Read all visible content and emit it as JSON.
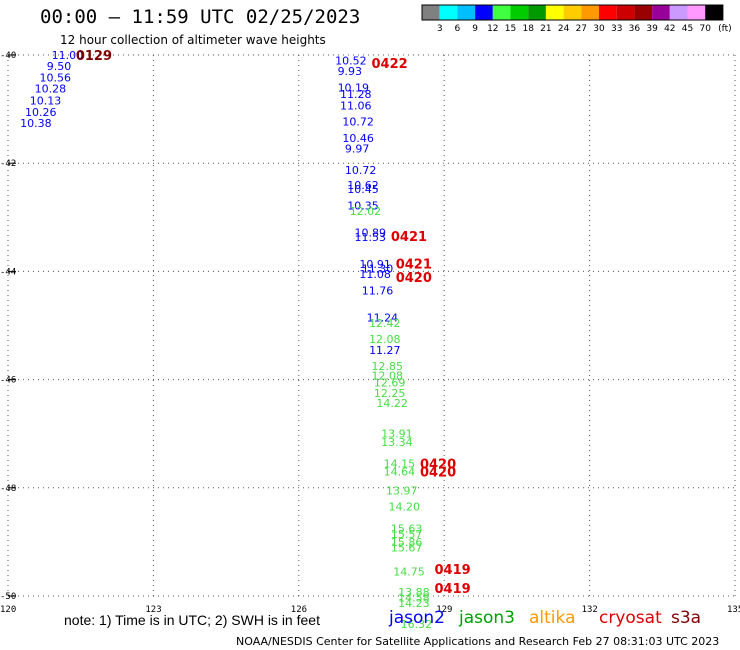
{
  "header": {
    "title": "00:00 — 11:59 UTC 02/25/2023",
    "subtitle": "12 hour collection of altimeter wave heights"
  },
  "footer": {
    "note": "note: 1) Time is in UTC; 2) SWH is in feet",
    "credit": "NOAA/NESDIS Center for Satellite Applications and Research    Feb 27 08:31:03 UTC 2023"
  },
  "satellites": [
    {
      "name": "jason2",
      "color": "#0000ff"
    },
    {
      "name": "jason3",
      "color": "#00a000"
    },
    {
      "name": "altika",
      "color": "#ff9900"
    },
    {
      "name": "cryosat",
      "color": "#dd0000"
    },
    {
      "name": "s3a",
      "color": "#800000"
    }
  ],
  "chart_data": {
    "type": "scatter",
    "xlim": [
      120,
      135
    ],
    "ylim": [
      -50,
      -40
    ],
    "x_ticks": [
      "120",
      "123",
      "126",
      "129",
      "132",
      "135"
    ],
    "y_ticks": [
      "-40",
      "-42",
      "-44",
      "-46",
      "-48",
      "-50"
    ],
    "grid": true,
    "colorbar": {
      "unit": "(ft)",
      "labels": [
        "3",
        "6",
        "9",
        "12",
        "15",
        "18",
        "21",
        "24",
        "27",
        "30",
        "33",
        "36",
        "39",
        "42",
        "45",
        "70"
      ],
      "colors": [
        "#808080",
        "#00ffff",
        "#00bfff",
        "#0000ff",
        "#40ff40",
        "#00cc00",
        "#009900",
        "#ffff00",
        "#ffcc00",
        "#ff9900",
        "#ff0000",
        "#cc0000",
        "#990000",
        "#990099",
        "#cc99ff",
        "#ff99ff",
        "#000000"
      ]
    },
    "time_labels": [
      {
        "text": "0129",
        "x": 121.4,
        "y": -40.0,
        "color": "#800000"
      },
      {
        "text": "0422",
        "x": 127.5,
        "y": -40.15,
        "color": "#dd0000"
      },
      {
        "text": "0421",
        "x": 127.9,
        "y": -43.35,
        "color": "#dd0000"
      },
      {
        "text": "0421",
        "x": 128.0,
        "y": -43.85,
        "color": "#dd0000"
      },
      {
        "text": "0420",
        "x": 128.0,
        "y": -44.1,
        "color": "#dd0000"
      },
      {
        "text": "0420",
        "x": 128.5,
        "y": -47.55,
        "color": "#dd0000"
      },
      {
        "text": "0420",
        "x": 128.5,
        "y": -47.7,
        "color": "#dd0000"
      },
      {
        "text": "0419",
        "x": 128.8,
        "y": -49.5,
        "color": "#dd0000"
      },
      {
        "text": "0419",
        "x": 128.8,
        "y": -49.85,
        "color": "#dd0000"
      }
    ],
    "series": [
      {
        "name": "jason2",
        "color": "#0000ff",
        "points": [
          {
            "x": 120.9,
            "y": -40.0,
            "v": "11.00"
          },
          {
            "x": 120.8,
            "y": -40.2,
            "v": "9.50"
          },
          {
            "x": 120.65,
            "y": -40.42,
            "v": "10.56"
          },
          {
            "x": 120.55,
            "y": -40.62,
            "v": "10.28"
          },
          {
            "x": 120.45,
            "y": -40.84,
            "v": "10.13"
          },
          {
            "x": 120.35,
            "y": -41.05,
            "v": "10.26"
          },
          {
            "x": 120.25,
            "y": -41.26,
            "v": "10.38"
          },
          {
            "x": 126.75,
            "y": -40.1,
            "v": "10.52"
          },
          {
            "x": 126.8,
            "y": -40.3,
            "v": "9.93"
          },
          {
            "x": 126.8,
            "y": -40.6,
            "v": "10.19"
          },
          {
            "x": 126.85,
            "y": -40.72,
            "v": "11.28"
          },
          {
            "x": 126.85,
            "y": -40.93,
            "v": "11.06"
          },
          {
            "x": 126.9,
            "y": -41.23,
            "v": "10.72"
          },
          {
            "x": 126.9,
            "y": -41.53,
            "v": "10.46"
          },
          {
            "x": 126.95,
            "y": -41.73,
            "v": "9.97"
          },
          {
            "x": 126.95,
            "y": -42.13,
            "v": "10.72"
          },
          {
            "x": 127.0,
            "y": -42.4,
            "v": "10.62"
          },
          {
            "x": 127.0,
            "y": -42.48,
            "v": "10.45"
          },
          {
            "x": 127.0,
            "y": -42.78,
            "v": "10.35"
          },
          {
            "x": 127.15,
            "y": -43.28,
            "v": "10.89"
          },
          {
            "x": 127.15,
            "y": -43.36,
            "v": "11.53"
          },
          {
            "x": 127.25,
            "y": -43.86,
            "v": "10.91"
          },
          {
            "x": 127.3,
            "y": -43.95,
            "v": "11.30"
          },
          {
            "x": 127.25,
            "y": -44.05,
            "v": "11.08"
          },
          {
            "x": 127.3,
            "y": -44.35,
            "v": "11.76"
          },
          {
            "x": 127.4,
            "y": -44.85,
            "v": "11.24"
          },
          {
            "x": 127.45,
            "y": -45.45,
            "v": "11.27"
          }
        ]
      },
      {
        "name": "jason3",
        "color": "#44dd44",
        "points": [
          {
            "x": 127.05,
            "y": -42.88,
            "v": "12.02"
          },
          {
            "x": 127.45,
            "y": -44.95,
            "v": "12.42"
          },
          {
            "x": 127.45,
            "y": -45.25,
            "v": "12.08"
          },
          {
            "x": 127.5,
            "y": -45.75,
            "v": "12.85"
          },
          {
            "x": 127.5,
            "y": -45.92,
            "v": "12.08"
          },
          {
            "x": 127.55,
            "y": -46.05,
            "v": "12.69"
          },
          {
            "x": 127.55,
            "y": -46.25,
            "v": "12.25"
          },
          {
            "x": 127.6,
            "y": -46.43,
            "v": "14.22"
          },
          {
            "x": 127.7,
            "y": -47.0,
            "v": "13.91"
          },
          {
            "x": 127.7,
            "y": -47.15,
            "v": "13.34"
          },
          {
            "x": 127.75,
            "y": -47.55,
            "v": "14.15"
          },
          {
            "x": 127.75,
            "y": -47.7,
            "v": "14.64"
          },
          {
            "x": 127.8,
            "y": -48.05,
            "v": "13.97"
          },
          {
            "x": 127.85,
            "y": -48.35,
            "v": "14.20"
          },
          {
            "x": 127.9,
            "y": -48.75,
            "v": "15.63"
          },
          {
            "x": 127.9,
            "y": -48.85,
            "v": "15.57"
          },
          {
            "x": 127.9,
            "y": -49.0,
            "v": "15.86"
          },
          {
            "x": 127.9,
            "y": -49.1,
            "v": "15.67"
          },
          {
            "x": 127.95,
            "y": -49.55,
            "v": "14.75"
          },
          {
            "x": 128.05,
            "y": -49.93,
            "v": "13.88"
          },
          {
            "x": 128.05,
            "y": -50.03,
            "v": "14.58"
          },
          {
            "x": 128.05,
            "y": -50.13,
            "v": "14.23"
          },
          {
            "x": 128.1,
            "y": -50.52,
            "v": "16.32"
          }
        ]
      }
    ]
  }
}
